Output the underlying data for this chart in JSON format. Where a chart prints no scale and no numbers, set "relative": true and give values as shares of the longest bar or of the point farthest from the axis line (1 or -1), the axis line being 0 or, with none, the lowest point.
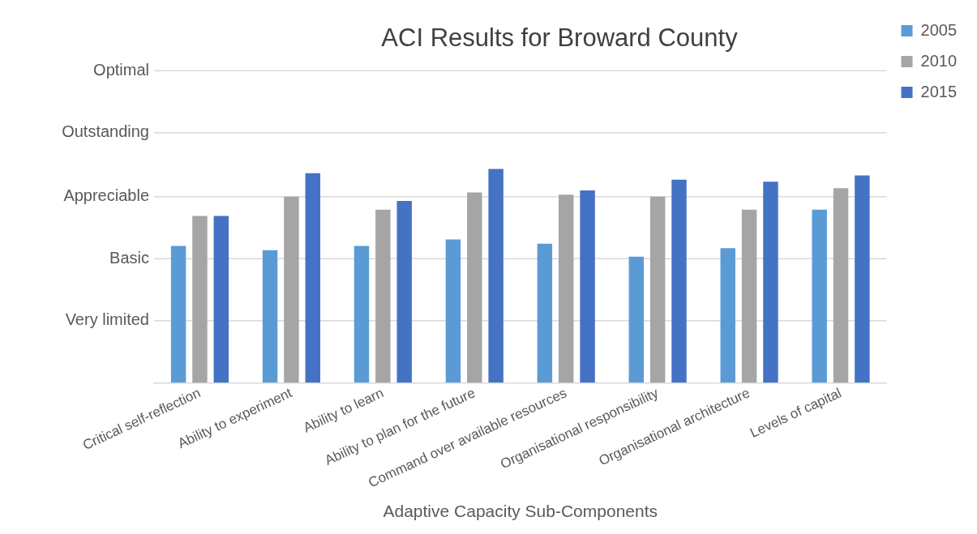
{
  "chart_data": {
    "type": "bar",
    "title": "ACI Results for Broward County",
    "xlabel": "Adaptive Capacity Sub-Components",
    "categories": [
      "Critical self-reflection",
      "Ability to experiment",
      "Ability to learn",
      "Ability to plan for the future",
      "Command over available resources",
      "Organisational responsibility",
      "Organisational architecture",
      "Levels of capital"
    ],
    "series": [
      {
        "name": "2005",
        "color": "#5b9bd5",
        "values": [
          0.64,
          0.62,
          0.64,
          0.67,
          0.65,
          0.59,
          0.63,
          0.81
        ]
      },
      {
        "name": "2010",
        "color": "#a5a5a5",
        "values": [
          0.78,
          0.87,
          0.81,
          0.89,
          0.88,
          0.87,
          0.81,
          0.91
        ]
      },
      {
        "name": "2015",
        "color": "#4472c4",
        "values": [
          0.78,
          0.98,
          0.85,
          1,
          0.9,
          0.95,
          0.94,
          0.97
        ]
      }
    ],
    "relative": true,
    "ref_lines": [
      {
        "axis": "y",
        "value": 0.29,
        "label": "Very limited",
        "color": "#d9d9d9"
      },
      {
        "axis": "y",
        "value": 0.58,
        "label": "Basic",
        "color": "#d9d9d9"
      },
      {
        "axis": "y",
        "value": 0.87,
        "label": "Appreciable",
        "color": "#d9d9d9"
      },
      {
        "axis": "y",
        "value": 1.17,
        "label": "Outstanding",
        "color": "#d9d9d9"
      },
      {
        "axis": "y",
        "value": 1.46,
        "label": "Optimal",
        "color": "#d9d9d9"
      }
    ],
    "legend": "top right"
  }
}
